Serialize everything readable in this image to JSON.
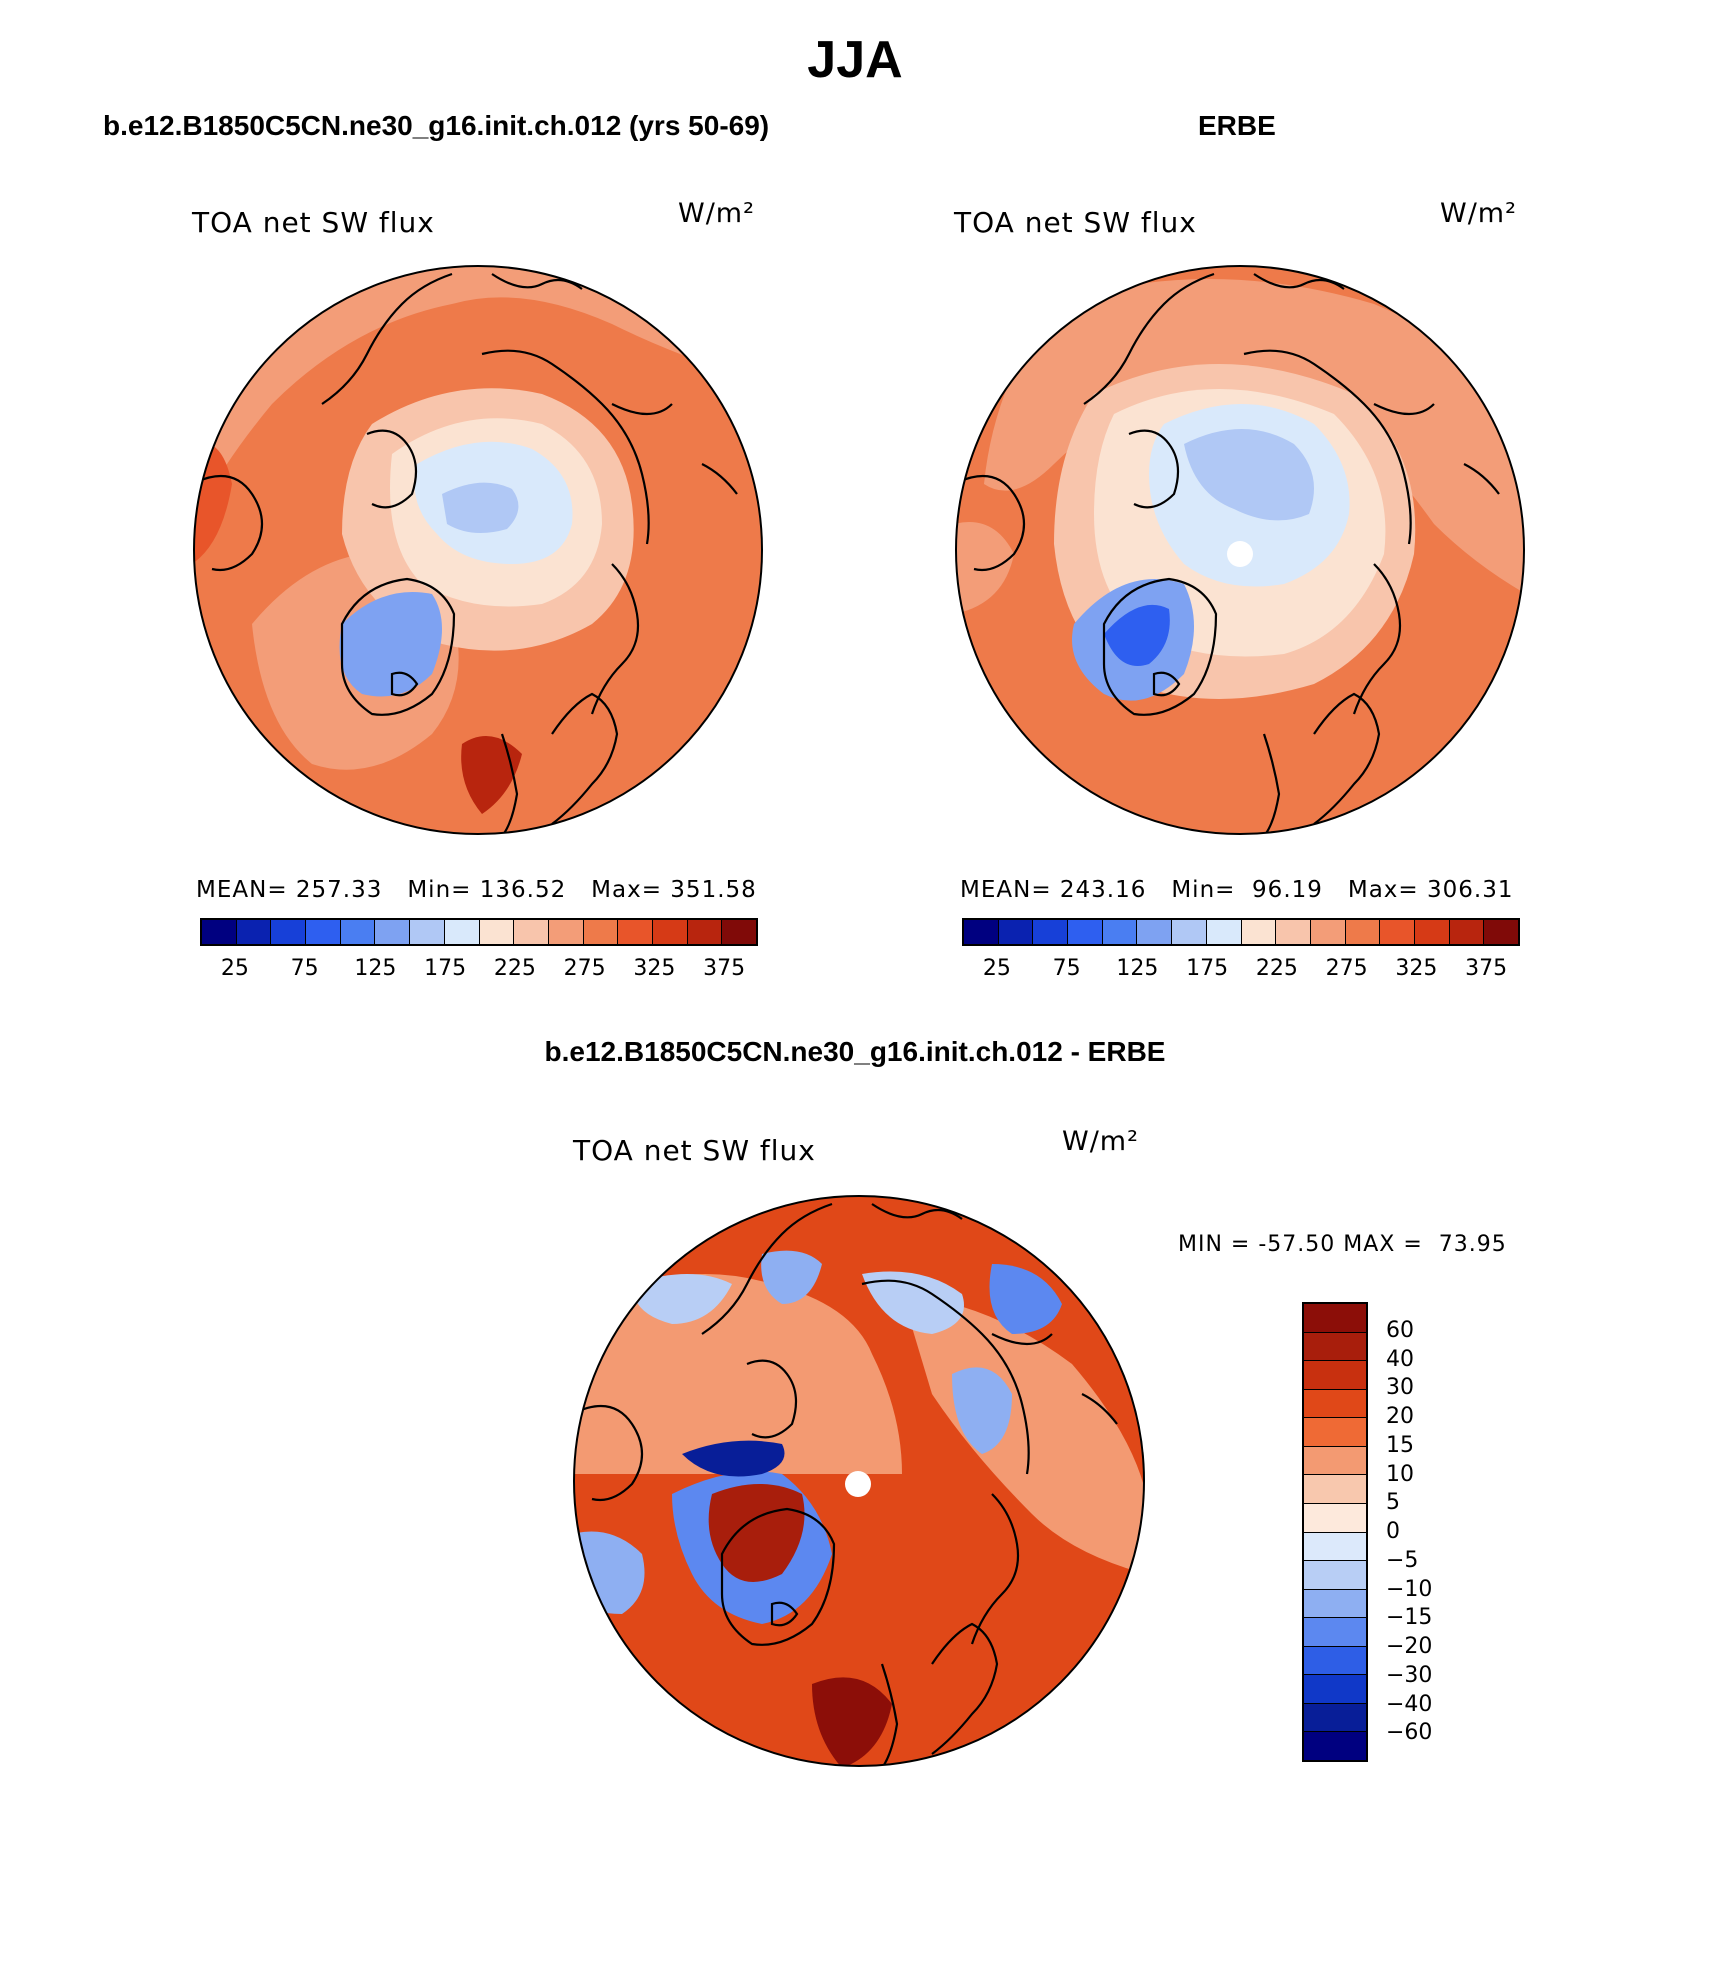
{
  "page_title": "JJA",
  "panels": [
    {
      "title": "b.e12.B1850C5CN.ne30_g16.init.ch.012 (yrs 50-69)",
      "variable": "TOA net SW flux",
      "units": "W/m²",
      "mean_label": "MEAN=",
      "mean": "257.33",
      "min_label": "Min=",
      "min": "136.52",
      "max_label": "Max=",
      "max": "351.58",
      "ticks": [
        "25",
        "75",
        "125",
        "175",
        "225",
        "275",
        "325",
        "375"
      ]
    },
    {
      "title": "ERBE",
      "variable": "TOA net SW flux",
      "units": "W/m²",
      "mean_label": "MEAN=",
      "mean": "243.16",
      "min_label": "Min=",
      "min": "96.19",
      "max_label": "Max=",
      "max": "306.31",
      "ticks": [
        "25",
        "75",
        "125",
        "175",
        "225",
        "275",
        "325",
        "375"
      ]
    },
    {
      "title": "b.e12.B1850C5CN.ne30_g16.init.ch.012 - ERBE",
      "variable": "TOA net SW flux",
      "units": "W/m²",
      "minmax_text": "MIN = -57.50 MAX =  73.95",
      "levels": [
        "60",
        "40",
        "30",
        "20",
        "15",
        "10",
        "5",
        "0",
        "−5",
        "−10",
        "−15",
        "−20",
        "−30",
        "−40",
        "−60"
      ]
    }
  ],
  "colors": {
    "abs_scale": [
      "#000080",
      "#0a22b0",
      "#1740d8",
      "#2e5ff0",
      "#4a7ef2",
      "#7ea2f2",
      "#b0c8f5",
      "#d9e9fb",
      "#fbe3d2",
      "#f8c5ac",
      "#f39d78",
      "#ee7a4a",
      "#e8552a",
      "#d63a16",
      "#b8250e",
      "#800a08"
    ],
    "diff_scale": [
      "#8c0e08",
      "#a81e0c",
      "#c8300f",
      "#e04818",
      "#ef6a35",
      "#f39a72",
      "#f8c8ae",
      "#fde9dc",
      "#dce9fb",
      "#b8cef5",
      "#8eaff2",
      "#5c88f0",
      "#2e5ee6",
      "#1038c8",
      "#081e98",
      "#000080"
    ],
    "land_outline": "#000000"
  }
}
